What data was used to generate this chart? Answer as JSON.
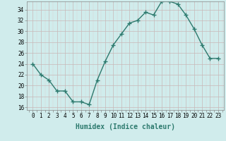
{
  "xlabel": "Humidex (Indice chaleur)",
  "ylabel": "",
  "x": [
    0,
    1,
    2,
    3,
    4,
    5,
    6,
    7,
    8,
    9,
    10,
    11,
    12,
    13,
    14,
    15,
    16,
    17,
    18,
    19,
    20,
    21,
    22,
    23
  ],
  "y": [
    24,
    22,
    21,
    19,
    19,
    17,
    17,
    16.5,
    21,
    24.5,
    27.5,
    29.5,
    31.5,
    32,
    33.5,
    33,
    35.5,
    35.5,
    35,
    33,
    30.5,
    27.5,
    25,
    25
  ],
  "line_color": "#2d7a6e",
  "marker": "+",
  "marker_size": 4,
  "bg_color": "#d0ecec",
  "grid_color_major": "#c8b8b8",
  "grid_color_minor": "#ddd0d0",
  "ylim": [
    15.5,
    35.5
  ],
  "yticks": [
    16,
    18,
    20,
    22,
    24,
    26,
    28,
    30,
    32,
    34
  ],
  "xticks": [
    0,
    1,
    2,
    3,
    4,
    5,
    6,
    7,
    8,
    9,
    10,
    11,
    12,
    13,
    14,
    15,
    16,
    17,
    18,
    19,
    20,
    21,
    22,
    23
  ],
  "xlabel_fontsize": 7,
  "tick_fontsize": 5.5,
  "line_width": 1.0,
  "marker_linewidth": 1.0
}
